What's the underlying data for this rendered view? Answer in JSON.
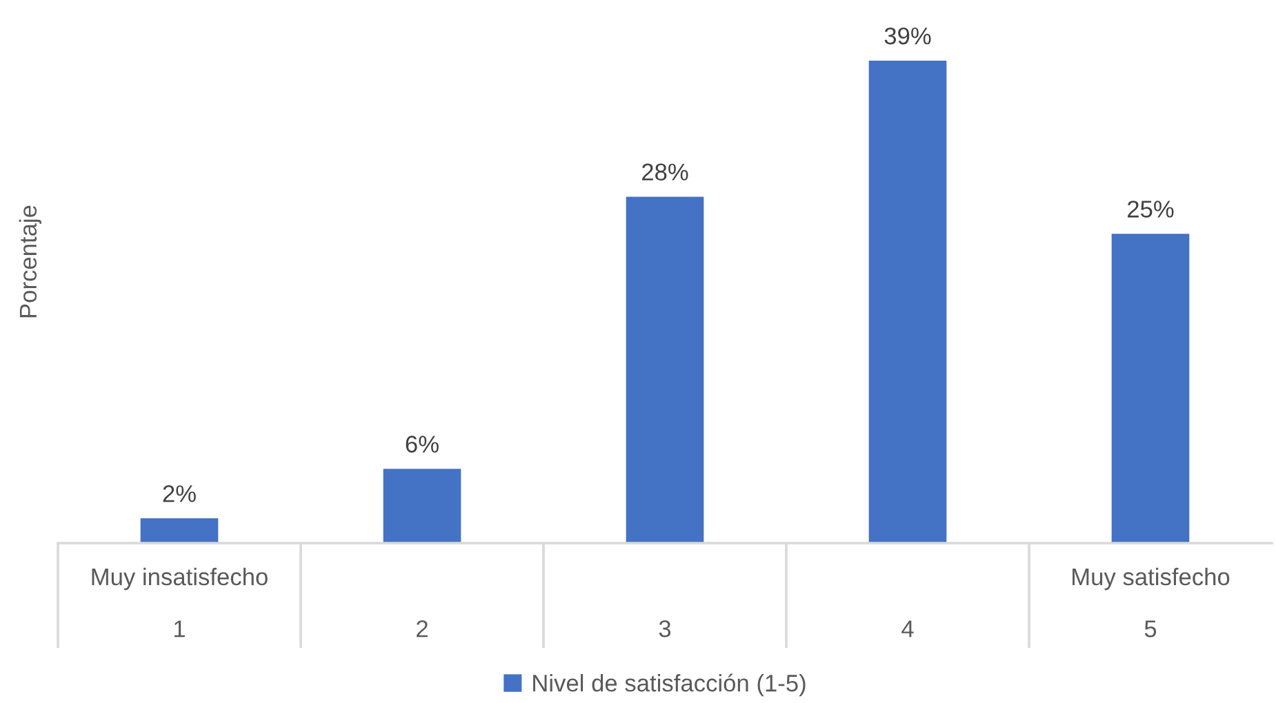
{
  "chart_data": {
    "type": "bar",
    "ylabel": "Porcentaje",
    "categories": [
      "1",
      "2",
      "3",
      "4",
      "5"
    ],
    "series": [
      {
        "name": "Nivel de satisfacción (1-5)",
        "color": "#4472c4",
        "values": [
          2,
          6,
          28,
          39,
          25
        ],
        "value_labels": [
          "2%",
          "6%",
          "28%",
          "39%",
          "25%"
        ]
      }
    ],
    "annotations": [
      "Muy insatisfecho",
      "Muy satisfecho"
    ],
    "legend": "bottom",
    "grid": false,
    "tick_labels": "x"
  }
}
